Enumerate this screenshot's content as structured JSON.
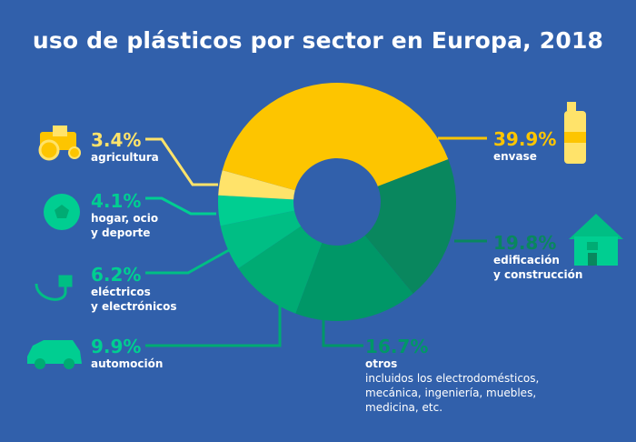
{
  "title": "uso de plásticos por sector en Europa, 2018",
  "colors": {
    "background": "#3160ab"
  },
  "chart_data": {
    "type": "pie",
    "title": "uso de plásticos por sector en Europa, 2018",
    "donut": true,
    "categories": [
      "envase",
      "edificación y construcción",
      "otros",
      "automoción",
      "eléctricos y electrónicos",
      "hogar, ocio y deporte",
      "agricultura"
    ],
    "values": [
      39.9,
      19.8,
      16.7,
      9.9,
      6.2,
      4.1,
      3.4
    ],
    "colors": [
      "#fdc500",
      "#09875e",
      "#009767",
      "#00ab73",
      "#00be84",
      "#00ce91",
      "#ffe36a"
    ],
    "labels": [
      {
        "pct": "39.9%",
        "name": "envase",
        "sub": "",
        "icon": "bottle-icon"
      },
      {
        "pct": "19.8%",
        "name": "edificación\ny construcción",
        "sub": "",
        "icon": "house-icon"
      },
      {
        "pct": "16.7%",
        "name": "otros",
        "sub": "incluidos los electrodomésticos,\nmecánica, ingeniería, muebles,\nmedicina, etc.",
        "icon": ""
      },
      {
        "pct": "9.9%",
        "name": "automoción",
        "sub": "",
        "icon": "car-icon"
      },
      {
        "pct": "6.2%",
        "name": "eléctricos\ny electrónicos",
        "sub": "",
        "icon": "plug-icon"
      },
      {
        "pct": "4.1%",
        "name": "hogar, ocio\ny deporte",
        "sub": "",
        "icon": "ball-icon"
      },
      {
        "pct": "3.4%",
        "name": "agricultura",
        "sub": "",
        "icon": "tractor-icon"
      }
    ]
  }
}
